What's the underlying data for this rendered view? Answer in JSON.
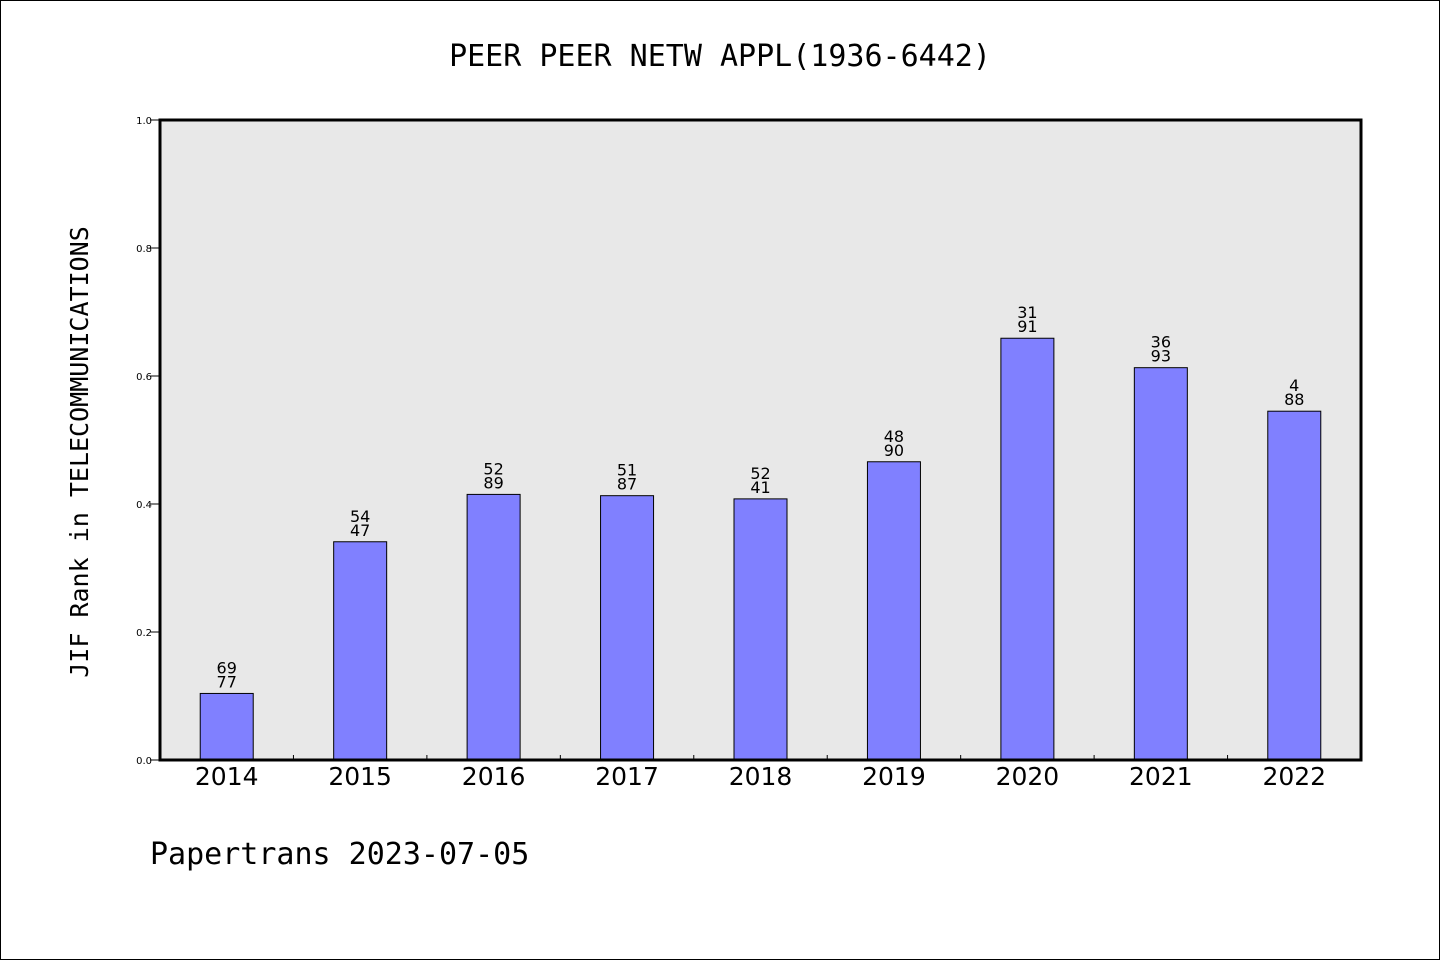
{
  "chart_data": {
    "type": "bar",
    "title": "PEER PEER NETW APPL(1936-6442)",
    "ylabel": "JIF Rank in TELECOMMUNICATIONS",
    "xlabel": "",
    "ylim": [
      0.0,
      1.0
    ],
    "yticks": [
      "0.0",
      "0.2",
      "0.4",
      "0.6",
      "0.8",
      "1.0"
    ],
    "grid": false,
    "categories": [
      "2014",
      "2015",
      "2016",
      "2017",
      "2018",
      "2019",
      "2020",
      "2021",
      "2022"
    ],
    "values": [
      0.104,
      0.341,
      0.415,
      0.413,
      0.408,
      0.466,
      0.659,
      0.613,
      0.545
    ],
    "rank": [
      "69",
      "54",
      "52",
      "51",
      "52",
      "48",
      "31",
      "36",
      "4"
    ],
    "total": [
      "77",
      "47",
      "89",
      "87",
      "41",
      "90",
      "91",
      "93",
      "88"
    ],
    "colors": {
      "bar": "#8080ff",
      "plot_bg": "#e8e8e8",
      "axis": "#000000"
    }
  },
  "footer": "Papertrans 2023-07-05"
}
